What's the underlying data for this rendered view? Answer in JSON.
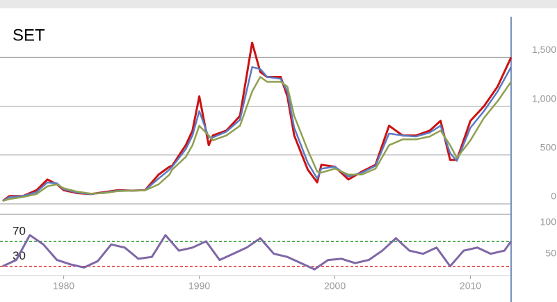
{
  "chart_data": [
    {
      "type": "line",
      "title": "SET",
      "xlim": [
        1975.3,
        2013.0
      ],
      "xticks": [
        1980,
        1990,
        2000,
        2010
      ],
      "ylim": [
        -50,
        1930
      ],
      "yticks": [
        0,
        500,
        {
          "value": 1000,
          "label": "1,000"
        },
        {
          "value": 1500,
          "label": "1,500"
        }
      ],
      "grid": true,
      "x": [
        1975.5,
        1976,
        1977,
        1978,
        1978.8,
        1979.5,
        1980,
        1981,
        1982,
        1983,
        1984,
        1985,
        1986,
        1987,
        1987.8,
        1988,
        1989,
        1989.5,
        1990,
        1990.7,
        1991,
        1992,
        1993,
        1993.9,
        1994.5,
        1995,
        1996,
        1996.5,
        1997,
        1998,
        1998.7,
        1999,
        2000,
        2001,
        2002,
        2003,
        2004,
        2005,
        2006,
        2007,
        2007.8,
        2008.5,
        2009,
        2010,
        2011,
        2012,
        2013
      ],
      "series": [
        {
          "color": "#cc1111",
          "values": [
            30,
            80,
            80,
            140,
            250,
            200,
            140,
            110,
            100,
            120,
            140,
            135,
            140,
            300,
            380,
            390,
            600,
            750,
            1100,
            600,
            700,
            750,
            900,
            1650,
            1350,
            1300,
            1300,
            1100,
            700,
            350,
            220,
            400,
            380,
            250,
            330,
            400,
            800,
            700,
            700,
            750,
            850,
            450,
            450,
            850,
            1000,
            1200,
            1500
          ]
        },
        {
          "color": "#5a7bc4",
          "values": [
            30,
            70,
            80,
            120,
            220,
            210,
            150,
            115,
            100,
            115,
            135,
            135,
            140,
            260,
            350,
            380,
            560,
            700,
            950,
            680,
            680,
            740,
            860,
            1400,
            1380,
            1300,
            1280,
            1150,
            780,
            420,
            260,
            360,
            380,
            280,
            320,
            390,
            720,
            700,
            690,
            730,
            800,
            520,
            440,
            780,
            950,
            1150,
            1400
          ]
        },
        {
          "color": "#8fa050",
          "values": [
            30,
            50,
            70,
            100,
            180,
            200,
            160,
            125,
            105,
            110,
            130,
            135,
            138,
            200,
            300,
            350,
            480,
            600,
            800,
            700,
            650,
            700,
            800,
            1150,
            1300,
            1250,
            1250,
            1200,
            900,
            550,
            330,
            320,
            360,
            300,
            300,
            360,
            600,
            660,
            660,
            690,
            750,
            600,
            470,
            650,
            880,
            1050,
            1250
          ]
        }
      ]
    },
    {
      "type": "line",
      "xlim": [
        1975.3,
        2013.0
      ],
      "ylim": [
        15,
        100
      ],
      "yticks": [
        100,
        50
      ],
      "levels": [
        {
          "value": 70,
          "label": "70",
          "color": "#008800"
        },
        {
          "value": 30,
          "label": "30",
          "color": "#dd0000"
        }
      ],
      "x": [
        1975.5,
        1976.5,
        1977.5,
        1978.5,
        1979.5,
        1980.5,
        1981.5,
        1982.5,
        1983.5,
        1984.5,
        1985.5,
        1986.5,
        1987.5,
        1988.5,
        1989.5,
        1990.5,
        1991.5,
        1992.5,
        1993.5,
        1994.5,
        1995.5,
        1996.5,
        1997.5,
        1998.5,
        1999.5,
        2000.5,
        2001.5,
        2002.5,
        2003.5,
        2004.5,
        2005.5,
        2006.5,
        2007.5,
        2008.5,
        2009.5,
        2010.5,
        2011.5,
        2012.5,
        2013.0
      ],
      "series": [
        {
          "color": "#7e67a6",
          "values": [
            30,
            40,
            80,
            65,
            40,
            33,
            28,
            38,
            65,
            60,
            42,
            45,
            80,
            55,
            60,
            70,
            40,
            50,
            60,
            75,
            50,
            45,
            35,
            25,
            40,
            42,
            35,
            40,
            55,
            75,
            55,
            50,
            60,
            30,
            55,
            60,
            50,
            55,
            70
          ]
        }
      ]
    }
  ]
}
